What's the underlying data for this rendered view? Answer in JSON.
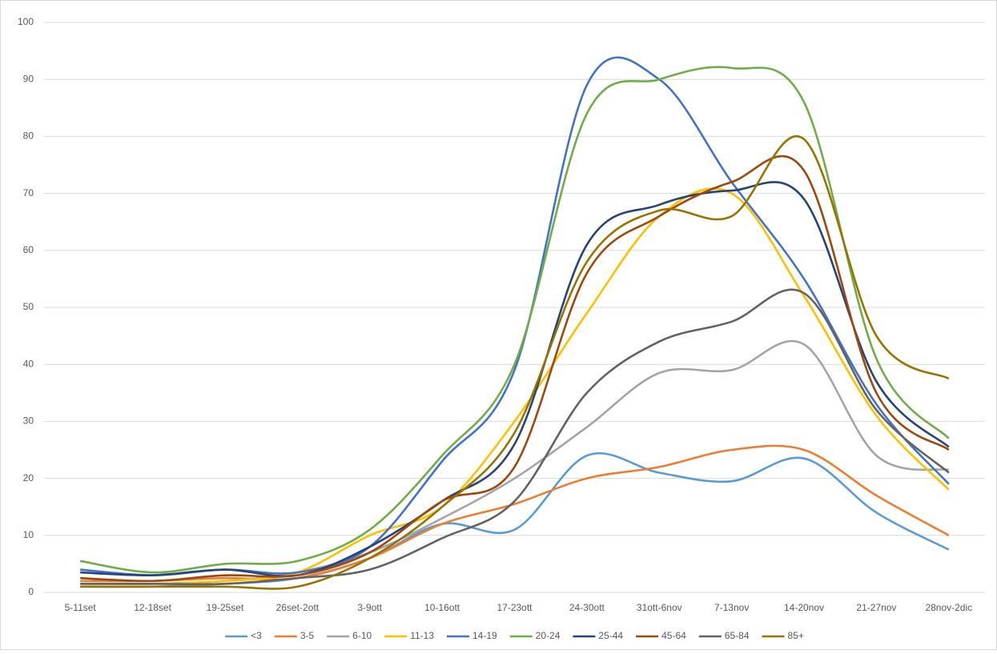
{
  "chart_data": {
    "type": "line",
    "categories": [
      "5-11set",
      "12-18set",
      "19-25set",
      "26set-2ott",
      "3-9ott",
      "10-16ott",
      "17-23ott",
      "24-30ott",
      "31ott-6nov",
      "7-13nov",
      "14-20nov",
      "21-27nov",
      "28nov-2dic"
    ],
    "series": [
      {
        "name": "<3",
        "color": "#5b9bd5",
        "values": [
          1,
          1,
          1.5,
          2.5,
          6,
          12,
          11,
          24,
          21,
          19.5,
          23.5,
          14,
          7.5
        ]
      },
      {
        "name": "3-5",
        "color": "#ed7d31",
        "values": [
          2,
          2,
          2.5,
          2.5,
          6,
          12,
          15.5,
          20,
          22,
          25,
          25,
          17,
          10
        ]
      },
      {
        "name": "6-10",
        "color": "#a5a5a5",
        "values": [
          1.5,
          1.5,
          2,
          3.5,
          7,
          13,
          20,
          29,
          38.5,
          39,
          43.5,
          24,
          21.5
        ]
      },
      {
        "name": "11-13",
        "color": "#ffc000",
        "values": [
          1.5,
          1.5,
          2,
          3.5,
          10,
          15,
          30,
          49,
          66,
          70,
          52,
          31,
          18
        ]
      },
      {
        "name": "14-19",
        "color": "#4472c4",
        "values": [
          4,
          3,
          4,
          3.5,
          8,
          23,
          39,
          89,
          90,
          72,
          55,
          33,
          19
        ]
      },
      {
        "name": "20-24",
        "color": "#70ad47",
        "values": [
          5.5,
          3.5,
          5,
          5.5,
          11,
          24,
          40,
          84,
          90,
          92,
          86,
          41,
          27
        ]
      },
      {
        "name": "25-44",
        "color": "#264478",
        "values": [
          3.5,
          3,
          4,
          3,
          8,
          16,
          26,
          61,
          68,
          70.5,
          69,
          37,
          25.5
        ]
      },
      {
        "name": "45-64",
        "color": "#9e480e",
        "values": [
          2.5,
          2,
          3,
          3,
          7,
          16,
          22,
          56,
          66,
          72,
          74,
          35,
          25
        ]
      },
      {
        "name": "65-84",
        "color": "#636363",
        "values": [
          1.5,
          1.5,
          1.5,
          2.5,
          4,
          9.5,
          16,
          35,
          44,
          47.5,
          52.5,
          32,
          21
        ]
      },
      {
        "name": "85+",
        "color": "#997300",
        "values": [
          1,
          1,
          1,
          1,
          6,
          15,
          28,
          58,
          67,
          66,
          79.5,
          45,
          37.5
        ]
      }
    ],
    "ylim": [
      0,
      100
    ],
    "yticks": [
      0,
      10,
      20,
      30,
      40,
      50,
      60,
      70,
      80,
      90,
      100
    ],
    "grid": true,
    "legend": "bottom"
  }
}
